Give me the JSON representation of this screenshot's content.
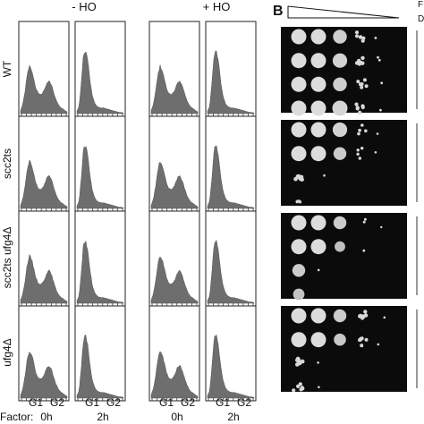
{
  "conditions": {
    "minus_ho": "- HO",
    "plus_ho": "+ HO"
  },
  "panel_b_letter": "B",
  "row_labels": [
    "WT",
    "scc2ts",
    "scc2ts ufg4Δ",
    "ufg4Δ"
  ],
  "x_ticks": [
    "G1",
    "G2",
    "G1",
    "G2",
    "G1",
    "G2",
    "G1",
    "G2"
  ],
  "time_axis": {
    "prefix": "Factor:",
    "times": [
      "0h",
      "2h",
      "0h",
      "2h"
    ]
  },
  "right_edge_letters": [
    "F",
    "D"
  ],
  "spot_grid": {
    "dilution_columns": 5,
    "spot_levels": [
      [
        [
          1,
          1,
          0.8,
          0.45,
          0.08
        ],
        [
          1,
          1,
          0.85,
          0.5,
          0.12
        ],
        [
          1,
          1,
          0.8,
          0.4,
          0.1
        ],
        [
          1,
          1,
          0.9,
          0.45,
          0.08
        ]
      ],
      [
        [
          1,
          1,
          0.85,
          0.3,
          0.06
        ],
        [
          1,
          1,
          0.75,
          0.25,
          0.04
        ],
        [
          0.55,
          0.05,
          0,
          0,
          0
        ],
        [
          0.25,
          0,
          0,
          0,
          0
        ]
      ],
      [
        [
          1,
          1,
          0.75,
          0.15,
          0.02
        ],
        [
          1,
          1,
          0.6,
          0.1,
          0
        ],
        [
          0.75,
          0.04,
          0,
          0,
          0
        ],
        [
          0.65,
          0,
          0,
          0,
          0
        ]
      ],
      [
        [
          1,
          1,
          0.75,
          0.5,
          0.05
        ],
        [
          1,
          1,
          0.7,
          0.4,
          0.04
        ],
        [
          0.55,
          0.05,
          0,
          0,
          0
        ],
        [
          0.45,
          0.04,
          0,
          0,
          0
        ]
      ]
    ]
  },
  "histogram_profiles": {
    "async": [
      0.05,
      0.15,
      0.35,
      0.62,
      0.76,
      0.7,
      0.55,
      0.4,
      0.32,
      0.3,
      0.33,
      0.4,
      0.5,
      0.52,
      0.45,
      0.33,
      0.22,
      0.15,
      0.1,
      0.08,
      0.05,
      0.03
    ],
    "arrested": [
      0.04,
      0.12,
      0.5,
      0.96,
      1.0,
      0.82,
      0.5,
      0.28,
      0.17,
      0.12,
      0.1,
      0.09,
      0.09,
      0.08,
      0.07,
      0.06,
      0.05,
      0.04,
      0.03,
      0.02,
      0.02,
      0.01
    ]
  }
}
